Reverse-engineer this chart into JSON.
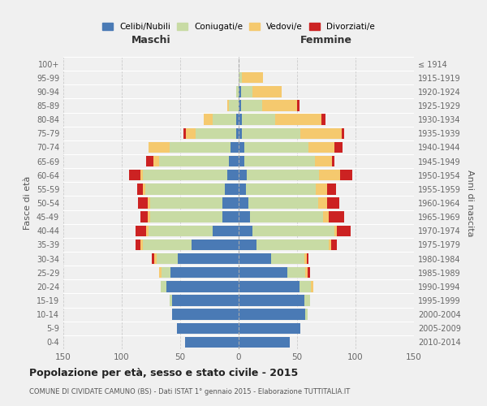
{
  "age_groups": [
    "100+",
    "95-99",
    "90-94",
    "85-89",
    "80-84",
    "75-79",
    "70-74",
    "65-69",
    "60-64",
    "55-59",
    "50-54",
    "45-49",
    "40-44",
    "35-39",
    "30-34",
    "25-29",
    "20-24",
    "15-19",
    "10-14",
    "5-9",
    "0-4"
  ],
  "birth_years": [
    "≤ 1914",
    "1915-1919",
    "1920-1924",
    "1925-1929",
    "1930-1934",
    "1935-1939",
    "1940-1944",
    "1945-1949",
    "1950-1954",
    "1955-1959",
    "1960-1964",
    "1965-1969",
    "1970-1974",
    "1975-1979",
    "1980-1984",
    "1985-1989",
    "1990-1994",
    "1995-1999",
    "2000-2004",
    "2005-2009",
    "2010-2014"
  ],
  "colors": {
    "celibe": "#4a7ab5",
    "coniugato": "#c8dba4",
    "vedovo": "#f5c96e",
    "divorziato": "#cc2222"
  },
  "maschi": {
    "celibe": [
      0,
      0,
      0,
      0,
      2,
      2,
      7,
      8,
      10,
      12,
      14,
      14,
      22,
      40,
      52,
      58,
      62,
      57,
      57,
      53,
      46
    ],
    "coniugato": [
      0,
      0,
      2,
      8,
      20,
      35,
      52,
      60,
      72,
      68,
      62,
      62,
      55,
      42,
      18,
      8,
      5,
      2,
      0,
      0,
      0
    ],
    "vedovo": [
      0,
      0,
      0,
      2,
      8,
      8,
      18,
      5,
      2,
      2,
      2,
      2,
      2,
      2,
      2,
      2,
      0,
      0,
      0,
      0,
      0
    ],
    "divorziato": [
      0,
      0,
      0,
      0,
      0,
      2,
      0,
      6,
      10,
      5,
      8,
      6,
      9,
      4,
      2,
      0,
      0,
      0,
      0,
      0,
      0
    ]
  },
  "femmine": {
    "nubile": [
      0,
      0,
      2,
      2,
      3,
      3,
      5,
      5,
      7,
      6,
      8,
      10,
      12,
      15,
      28,
      42,
      52,
      56,
      57,
      53,
      44
    ],
    "coniugata": [
      0,
      3,
      10,
      18,
      28,
      50,
      55,
      60,
      62,
      60,
      60,
      62,
      70,
      62,
      28,
      15,
      10,
      5,
      2,
      0,
      0
    ],
    "vedova": [
      0,
      18,
      25,
      30,
      40,
      35,
      22,
      15,
      18,
      10,
      8,
      5,
      2,
      2,
      2,
      2,
      2,
      0,
      0,
      0,
      0
    ],
    "divorziata": [
      0,
      0,
      0,
      2,
      3,
      2,
      7,
      2,
      10,
      7,
      10,
      13,
      12,
      5,
      2,
      2,
      0,
      0,
      0,
      0,
      0
    ]
  },
  "title": "Popolazione per età, sesso e stato civile - 2015",
  "subtitle": "COMUNE DI CIVIDATE CAMUNO (BS) - Dati ISTAT 1° gennaio 2015 - Elaborazione TUTTITALIA.IT",
  "xlabel_left": "Maschi",
  "xlabel_right": "Femmine",
  "ylabel_left": "Fasce di età",
  "ylabel_right": "Anni di nascita",
  "xlim": 150,
  "legend_labels": [
    "Celibi/Nubili",
    "Coniugati/e",
    "Vedovi/e",
    "Divorziati/e"
  ],
  "bg_color": "#f0f0f0"
}
